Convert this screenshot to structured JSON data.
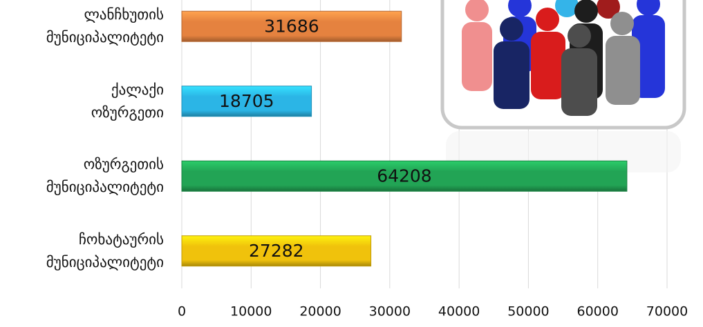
{
  "chart_data": {
    "type": "bar",
    "orientation": "horizontal",
    "categories": [
      "ლანჩხუთის\nმუნიციპალიტეტი",
      "ქალაქი\nოზურგეთი",
      "ოზურგეთის\nმუნიციპალიტეტი",
      "ჩოხატაურის\nმუნიციპალიტეტი"
    ],
    "values": [
      31686,
      18705,
      64208,
      27282
    ],
    "colors": [
      "#e5823f",
      "#2bb5e6",
      "#22a455",
      "#f0c20c"
    ],
    "xlim": [
      0,
      70000
    ],
    "xticks": [
      0,
      10000,
      20000,
      30000,
      40000,
      50000,
      60000,
      70000
    ],
    "grid": true
  }
}
